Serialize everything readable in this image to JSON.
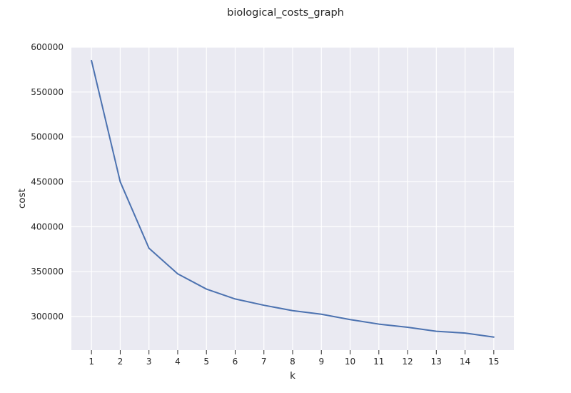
{
  "chart_data": {
    "type": "line",
    "title": "biological_costs_graph",
    "xlabel": "k",
    "ylabel": "cost",
    "x": [
      1,
      2,
      3,
      4,
      5,
      6,
      7,
      8,
      9,
      10,
      11,
      12,
      13,
      14,
      15
    ],
    "series": [
      {
        "values": [
          585000,
          450000,
          376000,
          347500,
          330500,
          319500,
          312500,
          306500,
          302500,
          296500,
          291500,
          288000,
          283500,
          281500,
          277000
        ]
      }
    ],
    "x_ticks": [
      "1",
      "2",
      "3",
      "4",
      "5",
      "6",
      "7",
      "8",
      "9",
      "10",
      "11",
      "12",
      "13",
      "14",
      "15"
    ],
    "y_ticks": [
      "300000",
      "350000",
      "400000",
      "450000",
      "500000",
      "550000",
      "600000"
    ],
    "xlim": [
      0.3,
      15.7
    ],
    "ylim": [
      262500,
      600000
    ],
    "grid": true,
    "colors": {
      "plot_background": "#EAEAF2",
      "grid": "#FFFFFF",
      "line": "#4C72B0"
    }
  }
}
